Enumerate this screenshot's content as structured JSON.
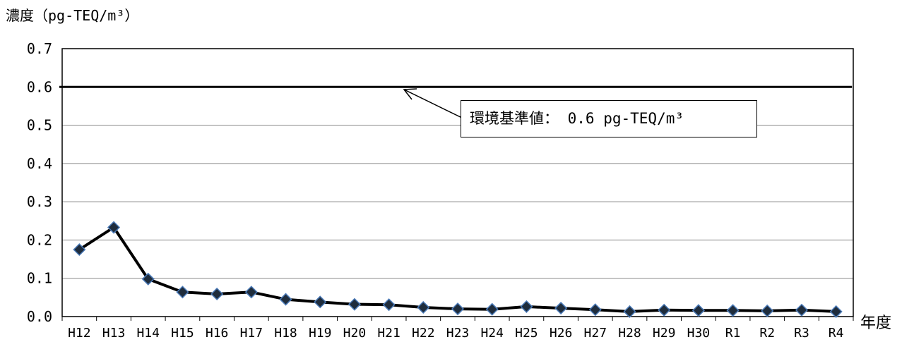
{
  "chart_data": {
    "type": "line",
    "ylabel": "濃度（pg-TEQ/m³）",
    "xlabel": "年度",
    "categories": [
      "H12",
      "H13",
      "H14",
      "H15",
      "H16",
      "H17",
      "H18",
      "H19",
      "H20",
      "H21",
      "H22",
      "H23",
      "H24",
      "H25",
      "H26",
      "H27",
      "H28",
      "H29",
      "H30",
      "R1",
      "R2",
      "R3",
      "R4"
    ],
    "series": [
      {
        "values": [
          0.175,
          0.233,
          0.098,
          0.064,
          0.059,
          0.064,
          0.045,
          0.038,
          0.032,
          0.031,
          0.024,
          0.02,
          0.019,
          0.026,
          0.022,
          0.018,
          0.013,
          0.017,
          0.016,
          0.016,
          0.015,
          0.017,
          0.013
        ]
      }
    ],
    "ylim": [
      0,
      0.7
    ],
    "yticks": [
      "0.0",
      "0.1",
      "0.2",
      "0.3",
      "0.4",
      "0.5",
      "0.6",
      "0.7"
    ],
    "reference_line": {
      "value": 0.6,
      "label": "環境基準値： 0.6 pg-TEQ/m³"
    },
    "grid": true,
    "line_color": "#000000",
    "marker_fill": "#1f2d3d",
    "marker_edge": "#4a7ab8"
  }
}
